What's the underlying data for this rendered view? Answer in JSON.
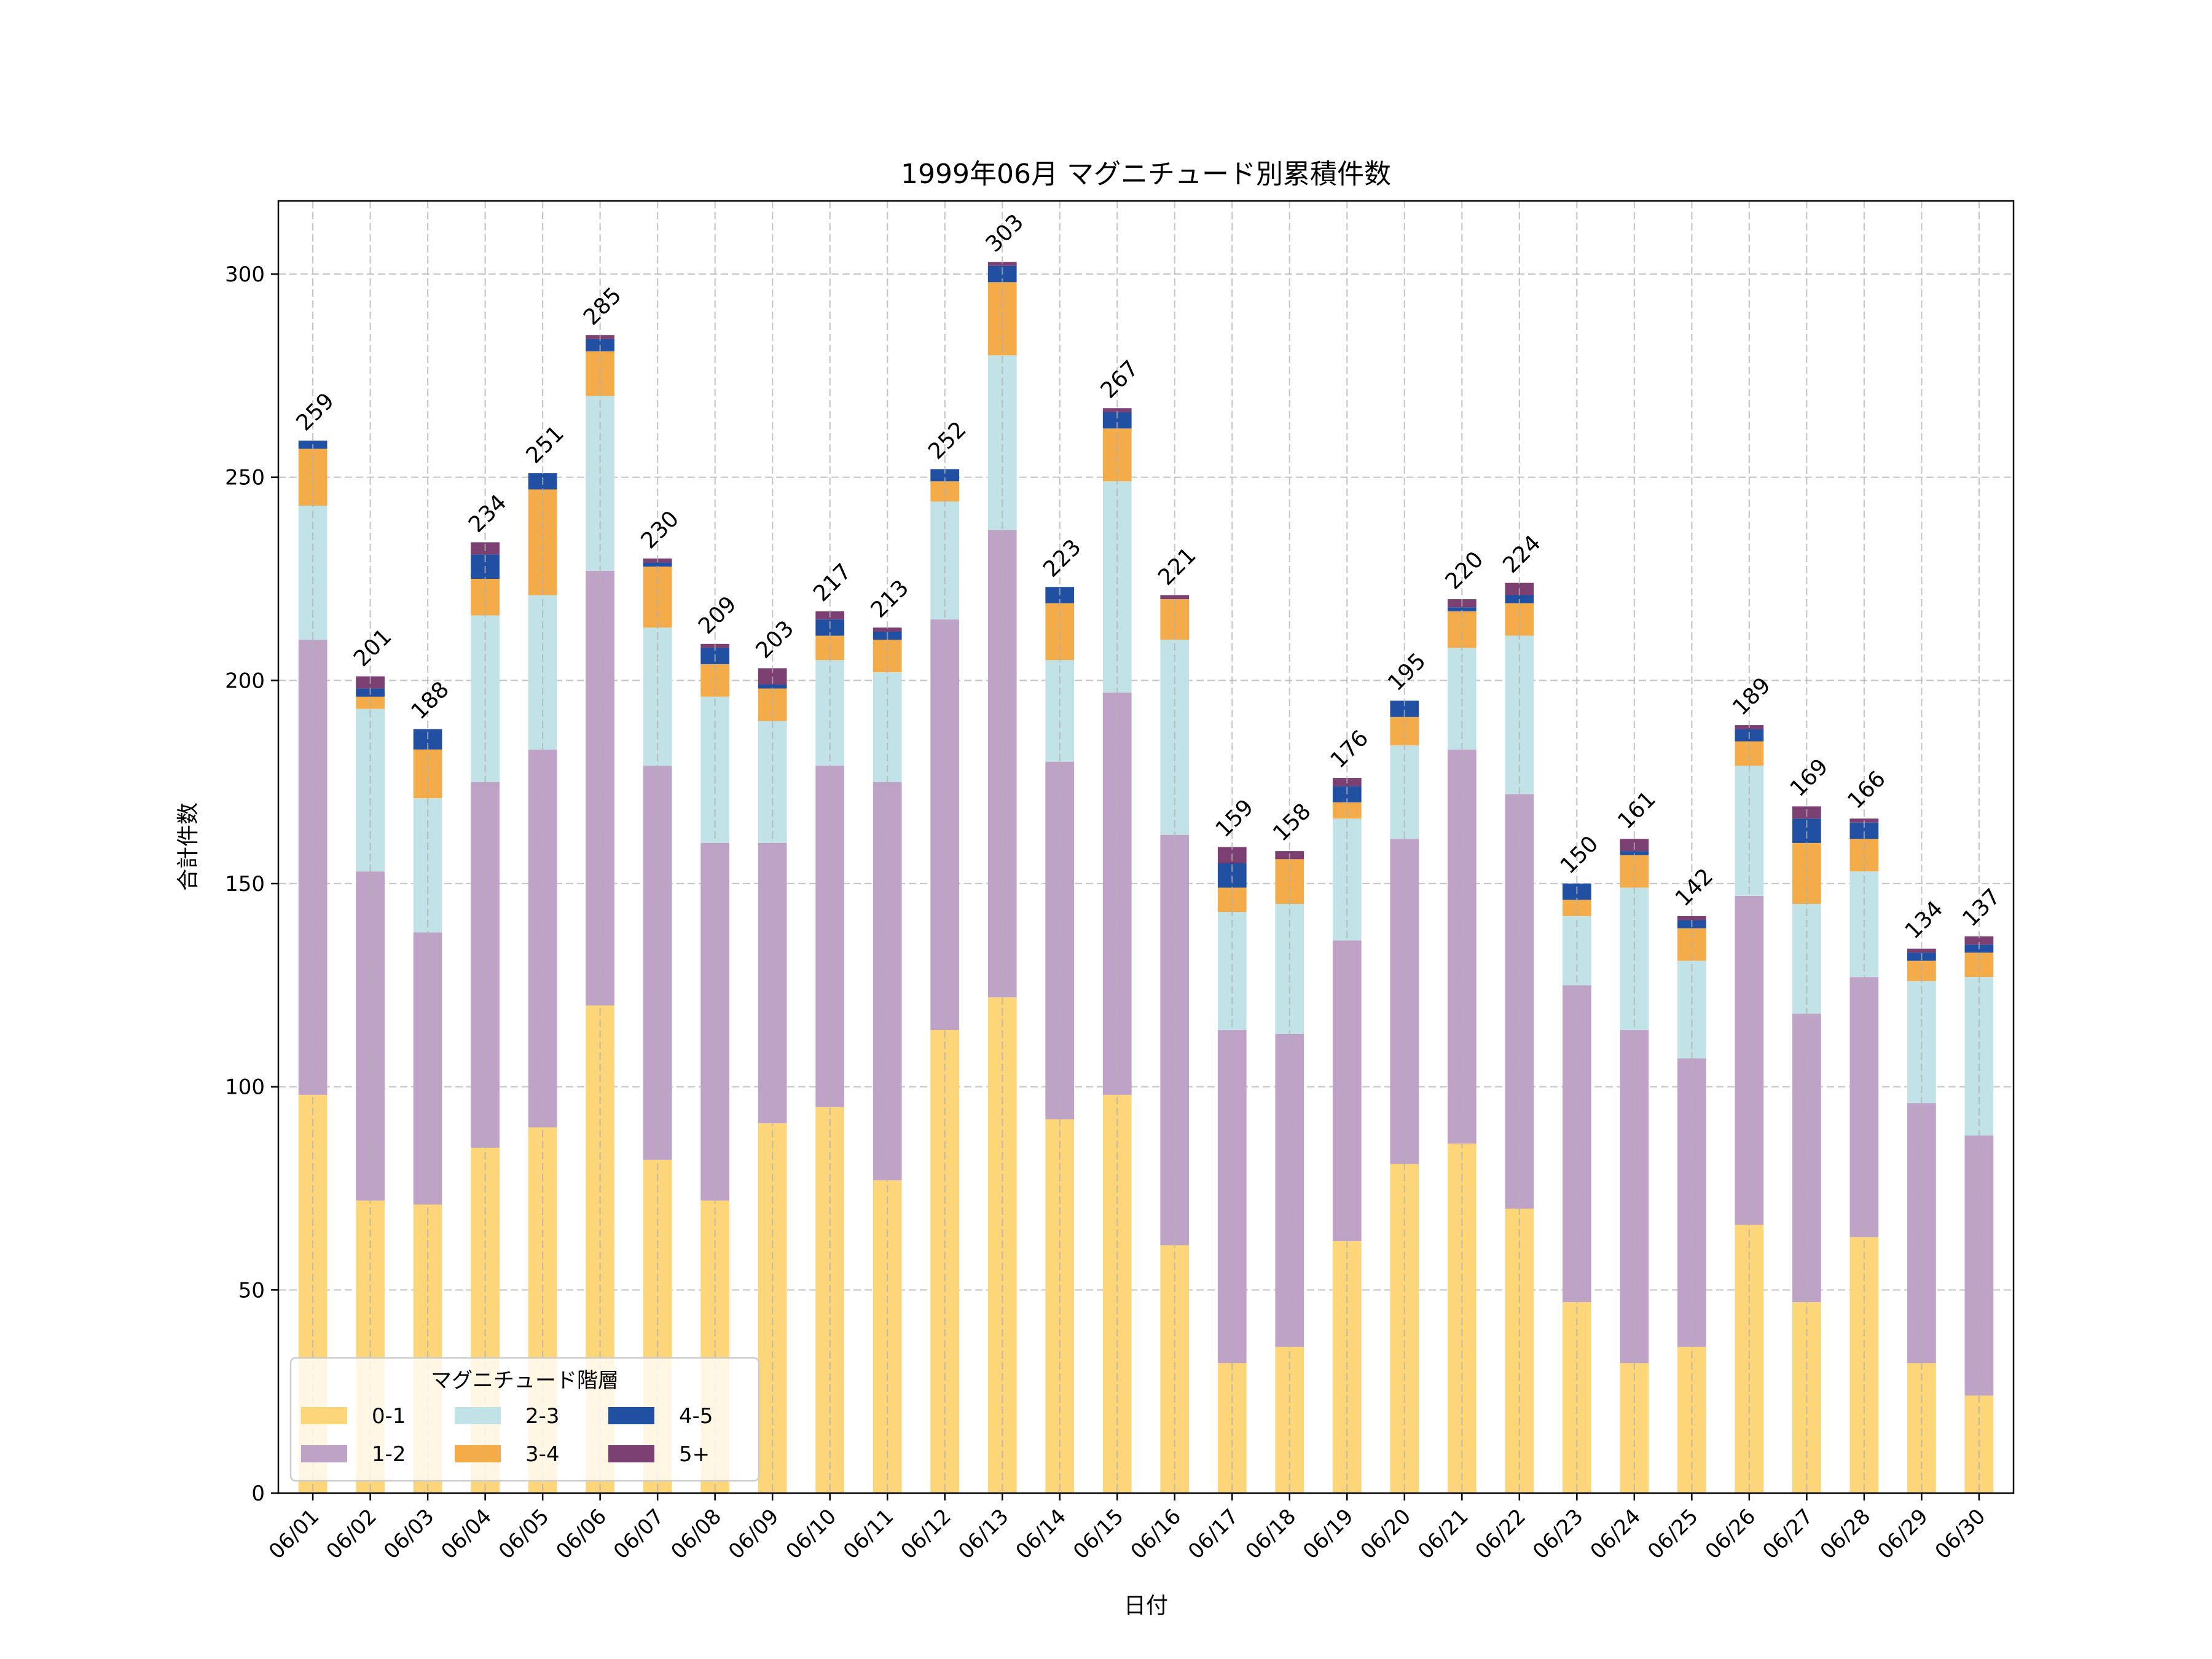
{
  "chart_data": {
    "type": "bar",
    "stacked": true,
    "title": "1999年06月 マグニチュード別累積件数",
    "xlabel": "日付",
    "ylabel": "合計件数",
    "ylim": [
      0,
      318
    ],
    "yticks": [
      0,
      50,
      100,
      150,
      200,
      250,
      300
    ],
    "grid": true,
    "legend": {
      "title": "マグニチュード階層",
      "placement": "lower-left",
      "columns": 3
    },
    "categories": [
      "06/01",
      "06/02",
      "06/03",
      "06/04",
      "06/05",
      "06/06",
      "06/07",
      "06/08",
      "06/09",
      "06/10",
      "06/11",
      "06/12",
      "06/13",
      "06/14",
      "06/15",
      "06/16",
      "06/17",
      "06/18",
      "06/19",
      "06/20",
      "06/21",
      "06/22",
      "06/23",
      "06/24",
      "06/25",
      "06/26",
      "06/27",
      "06/28",
      "06/29",
      "06/30"
    ],
    "series": [
      {
        "name": "0-1",
        "color": "#fcd678",
        "values": [
          98,
          72,
          71,
          85,
          90,
          120,
          82,
          72,
          91,
          95,
          77,
          114,
          122,
          92,
          98,
          61,
          32,
          36,
          62,
          81,
          86,
          70,
          47,
          32,
          36,
          66,
          47,
          63,
          32,
          24
        ]
      },
      {
        "name": "1-2",
        "color": "#bfa3c7",
        "values": [
          112,
          81,
          67,
          90,
          93,
          107,
          97,
          88,
          69,
          84,
          98,
          101,
          115,
          88,
          99,
          101,
          82,
          77,
          74,
          80,
          97,
          102,
          78,
          82,
          71,
          81,
          71,
          64,
          64,
          64
        ]
      },
      {
        "name": "2-3",
        "color": "#c1e3e7",
        "values": [
          33,
          40,
          33,
          41,
          38,
          43,
          34,
          36,
          30,
          26,
          27,
          29,
          43,
          25,
          52,
          48,
          29,
          32,
          30,
          23,
          25,
          39,
          17,
          35,
          24,
          32,
          27,
          26,
          30,
          39
        ]
      },
      {
        "name": "3-4",
        "color": "#f4ac4a",
        "values": [
          14,
          3,
          12,
          9,
          26,
          11,
          15,
          8,
          8,
          6,
          8,
          5,
          18,
          14,
          13,
          10,
          6,
          11,
          4,
          7,
          9,
          8,
          4,
          8,
          8,
          6,
          15,
          8,
          5,
          6
        ]
      },
      {
        "name": "4-5",
        "color": "#2150a3",
        "values": [
          2,
          2,
          5,
          6,
          4,
          3,
          1,
          4,
          1,
          4,
          2,
          3,
          4,
          4,
          4,
          0,
          6,
          0,
          4,
          4,
          1,
          2,
          4,
          1,
          2,
          3,
          6,
          4,
          2,
          2
        ]
      },
      {
        "name": "5+",
        "color": "#7b3f72",
        "values": [
          0,
          3,
          0,
          3,
          0,
          1,
          1,
          1,
          4,
          2,
          1,
          0,
          1,
          0,
          1,
          1,
          4,
          2,
          2,
          0,
          2,
          3,
          0,
          3,
          1,
          1,
          3,
          1,
          1,
          2
        ]
      }
    ],
    "totals": [
      259,
      201,
      188,
      234,
      251,
      285,
      230,
      209,
      203,
      217,
      213,
      252,
      303,
      223,
      267,
      221,
      159,
      158,
      176,
      195,
      220,
      224,
      150,
      161,
      142,
      189,
      169,
      166,
      134,
      137
    ]
  }
}
